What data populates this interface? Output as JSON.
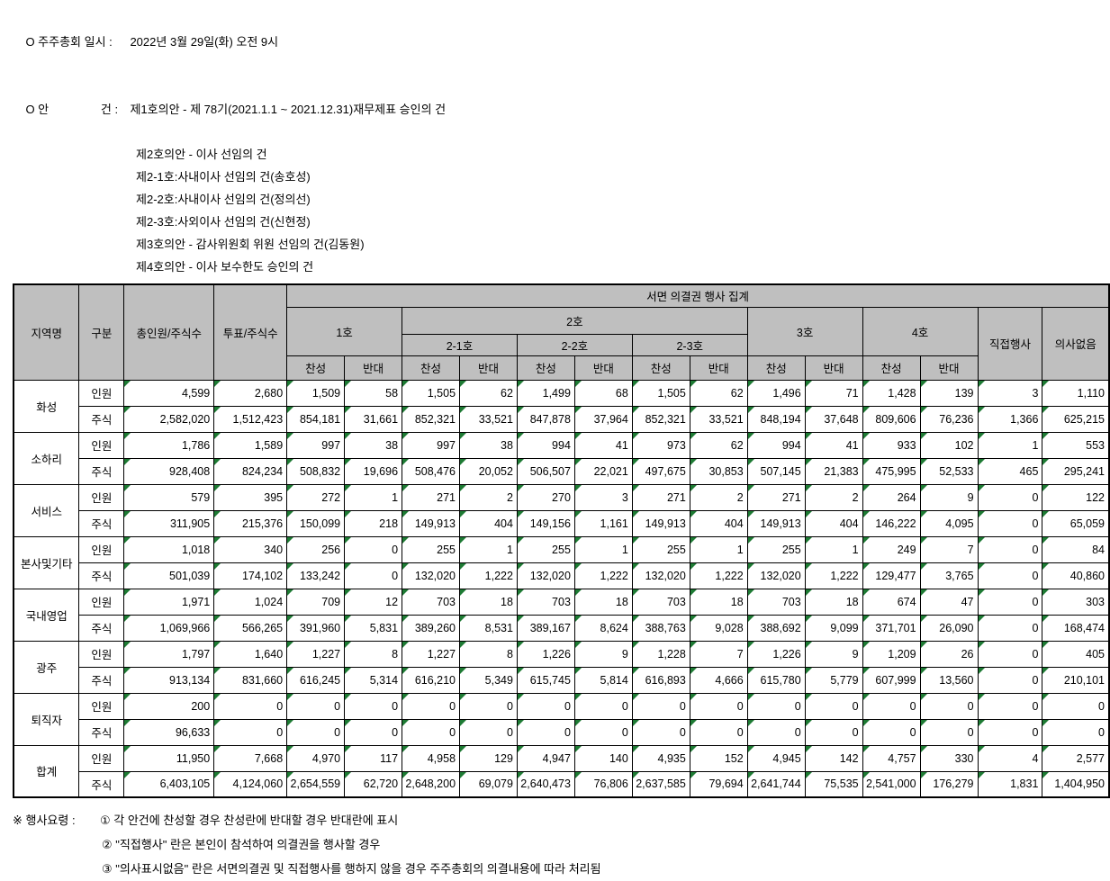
{
  "colors": {
    "header_bg": "#bfbfbf",
    "border": "#000000",
    "flag_green": "#1e7b34",
    "text": "#000000",
    "background": "#ffffff"
  },
  "meta": {
    "date_label": "O 주주총회 일시 :",
    "date_value": "2022년 3월 29일(화) 오전 9시",
    "agenda_label": "O 안                건 :",
    "agenda_first": "제1호의안 - 제 78기(2021.1.1 ~ 2021.12.31)재무제표 승인의 건",
    "agenda_items": [
      "제2호의안 - 이사 선임의 건",
      "제2-1호:사내이사 선임의 건(송호성)",
      "제2-2호:사내이사 선임의 건(정의선)",
      "제2-3호:사외이사 선임의 건(신현정)",
      "제3호의안 - 감사위원회 위원 선임의 건(김동원)",
      "제4호의안 - 이사 보수한도 승인의 건"
    ]
  },
  "table": {
    "header": {
      "region": "지역명",
      "category": "구분",
      "total_col": "총인원/주식수",
      "vote_col": "투표/주식수",
      "summary": "서면 의결권 행사 집계",
      "item1": "1호",
      "item2": "2호",
      "item2_subs": [
        "2-1호",
        "2-2호",
        "2-3호"
      ],
      "item3": "3호",
      "item4": "4호",
      "approve": "찬성",
      "oppose": "반대",
      "direct": "직접행사",
      "no_opinion": "의사없음"
    },
    "row_labels": {
      "people": "인원",
      "shares": "주식"
    },
    "regions": [
      {
        "name": "화성",
        "people": [
          "4,599",
          "2,680",
          "1,509",
          "58",
          "1,505",
          "62",
          "1,499",
          "68",
          "1,505",
          "62",
          "1,496",
          "71",
          "1,428",
          "139",
          "3",
          "1,110"
        ],
        "shares": [
          "2,582,020",
          "1,512,423",
          "854,181",
          "31,661",
          "852,321",
          "33,521",
          "847,878",
          "37,964",
          "852,321",
          "33,521",
          "848,194",
          "37,648",
          "809,606",
          "76,236",
          "1,366",
          "625,215"
        ]
      },
      {
        "name": "소하리",
        "people": [
          "1,786",
          "1,589",
          "997",
          "38",
          "997",
          "38",
          "994",
          "41",
          "973",
          "62",
          "994",
          "41",
          "933",
          "102",
          "1",
          "553"
        ],
        "shares": [
          "928,408",
          "824,234",
          "508,832",
          "19,696",
          "508,476",
          "20,052",
          "506,507",
          "22,021",
          "497,675",
          "30,853",
          "507,145",
          "21,383",
          "475,995",
          "52,533",
          "465",
          "295,241"
        ]
      },
      {
        "name": "서비스",
        "people": [
          "579",
          "395",
          "272",
          "1",
          "271",
          "2",
          "270",
          "3",
          "271",
          "2",
          "271",
          "2",
          "264",
          "9",
          "0",
          "122"
        ],
        "shares": [
          "311,905",
          "215,376",
          "150,099",
          "218",
          "149,913",
          "404",
          "149,156",
          "1,161",
          "149,913",
          "404",
          "149,913",
          "404",
          "146,222",
          "4,095",
          "0",
          "65,059"
        ]
      },
      {
        "name": "본사및기타",
        "people": [
          "1,018",
          "340",
          "256",
          "0",
          "255",
          "1",
          "255",
          "1",
          "255",
          "1",
          "255",
          "1",
          "249",
          "7",
          "0",
          "84"
        ],
        "shares": [
          "501,039",
          "174,102",
          "133,242",
          "0",
          "132,020",
          "1,222",
          "132,020",
          "1,222",
          "132,020",
          "1,222",
          "132,020",
          "1,222",
          "129,477",
          "3,765",
          "0",
          "40,860"
        ]
      },
      {
        "name": "국내영업",
        "people": [
          "1,971",
          "1,024",
          "709",
          "12",
          "703",
          "18",
          "703",
          "18",
          "703",
          "18",
          "703",
          "18",
          "674",
          "47",
          "0",
          "303"
        ],
        "shares": [
          "1,069,966",
          "566,265",
          "391,960",
          "5,831",
          "389,260",
          "8,531",
          "389,167",
          "8,624",
          "388,763",
          "9,028",
          "388,692",
          "9,099",
          "371,701",
          "26,090",
          "0",
          "168,474"
        ]
      },
      {
        "name": "광주",
        "people": [
          "1,797",
          "1,640",
          "1,227",
          "8",
          "1,227",
          "8",
          "1,226",
          "9",
          "1,228",
          "7",
          "1,226",
          "9",
          "1,209",
          "26",
          "0",
          "405"
        ],
        "shares": [
          "913,134",
          "831,660",
          "616,245",
          "5,314",
          "616,210",
          "5,349",
          "615,745",
          "5,814",
          "616,893",
          "4,666",
          "615,780",
          "5,779",
          "607,999",
          "13,560",
          "0",
          "210,101"
        ]
      },
      {
        "name": "퇴직자",
        "people": [
          "200",
          "0",
          "0",
          "0",
          "0",
          "0",
          "0",
          "0",
          "0",
          "0",
          "0",
          "0",
          "0",
          "0",
          "0",
          "0"
        ],
        "shares": [
          "96,633",
          "0",
          "0",
          "0",
          "0",
          "0",
          "0",
          "0",
          "0",
          "0",
          "0",
          "0",
          "0",
          "0",
          "0",
          "0"
        ]
      },
      {
        "name": "합계",
        "people": [
          "11,950",
          "7,668",
          "4,970",
          "117",
          "4,958",
          "129",
          "4,947",
          "140",
          "4,935",
          "152",
          "4,945",
          "142",
          "4,757",
          "330",
          "4",
          "2,577"
        ],
        "shares": [
          "6,403,105",
          "4,124,060",
          "2,654,559",
          "62,720",
          "2,648,200",
          "69,079",
          "2,640,473",
          "76,806",
          "2,637,585",
          "79,694",
          "2,641,744",
          "75,535",
          "2,541,000",
          "176,279",
          "1,831",
          "1,404,950"
        ]
      }
    ]
  },
  "notes": {
    "prefix": "※ 행사요령 :",
    "items": [
      "① 각 안건에 찬성할 경우 찬성란에 반대할 경우 반대란에 표시",
      "② \"직접행사\" 란은 본인이 참석하여 의결권을 행사할 경우",
      "③ \"의사표시없음\" 란은 서면의결권 및 직접행사를 행하지 않을 경우 주주총회의 의결내용에 따라 처리됨"
    ]
  }
}
